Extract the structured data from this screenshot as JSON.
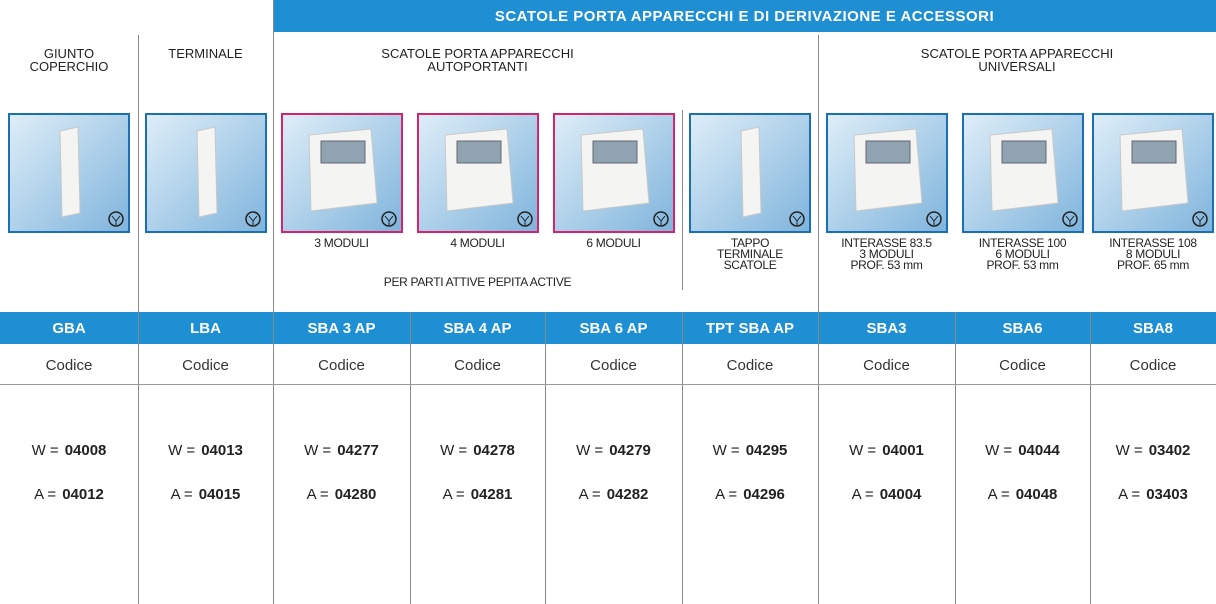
{
  "banner": "SCATOLE PORTA APPARECCHI E DI DERIVAZIONE E ACCESSORI",
  "groups": [
    {
      "lines": [
        "GIUNTO",
        "COPERCHIO"
      ]
    },
    {
      "lines": [
        "TERMINALE"
      ]
    },
    {
      "lines": [
        "SCATOLE PORTA APPARECCHI",
        "AUTOPORTANTI"
      ]
    },
    {
      "lines": [
        "SCATOLE PORTA APPARECCHI",
        "UNIVERSALI"
      ]
    }
  ],
  "note": "PER PARTI ATTIVE PEPITA ACTIVE",
  "products": [
    {
      "caption": [],
      "code": "GBA",
      "code_label": "Codice",
      "variants": [
        {
          "label": "W =",
          "code": "04008"
        },
        {
          "label": "A =",
          "code": "04012"
        }
      ]
    },
    {
      "caption": [],
      "code": "LBA",
      "code_label": "Codice",
      "variants": [
        {
          "label": "W =",
          "code": "04013"
        },
        {
          "label": "A =",
          "code": "04015"
        }
      ]
    },
    {
      "caption": [
        "3 MODULI"
      ],
      "code": "SBA 3 AP",
      "code_label": "Codice",
      "variants": [
        {
          "label": "W =",
          "code": "04277"
        },
        {
          "label": "A =",
          "code": "04280"
        }
      ]
    },
    {
      "caption": [
        "4 MODULI"
      ],
      "code": "SBA 4 AP",
      "code_label": "Codice",
      "variants": [
        {
          "label": "W =",
          "code": "04278"
        },
        {
          "label": "A =",
          "code": "04281"
        }
      ]
    },
    {
      "caption": [
        "6 MODULI"
      ],
      "code": "SBA 6 AP",
      "code_label": "Codice",
      "variants": [
        {
          "label": "W =",
          "code": "04279"
        },
        {
          "label": "A =",
          "code": "04282"
        }
      ]
    },
    {
      "caption": [
        "TAPPO",
        "TERMINALE",
        "SCATOLE"
      ],
      "code": "TPT SBA AP",
      "code_label": "Codice",
      "variants": [
        {
          "label": "W =",
          "code": "04295"
        },
        {
          "label": "A =",
          "code": "04296"
        }
      ]
    },
    {
      "caption": [
        "INTERASSE 83.5",
        "3 MODULI",
        "PROF. 53 mm"
      ],
      "code": "SBA3",
      "code_label": "Codice",
      "variants": [
        {
          "label": "W =",
          "code": "04001"
        },
        {
          "label": "A =",
          "code": "04004"
        }
      ]
    },
    {
      "caption": [
        "INTERASSE 100",
        "6 MODULI",
        "PROF. 53 mm"
      ],
      "code": "SBA6",
      "code_label": "Codice",
      "variants": [
        {
          "label": "W =",
          "code": "04044"
        },
        {
          "label": "A =",
          "code": "04048"
        }
      ]
    },
    {
      "caption": [
        "INTERASSE 108",
        "8 MODULI",
        "PROF. 65 mm"
      ],
      "code": "SBA8",
      "code_label": "Codice",
      "variants": [
        {
          "label": "W =",
          "code": "03402"
        },
        {
          "label": "A =",
          "code": "03403"
        }
      ]
    }
  ]
}
